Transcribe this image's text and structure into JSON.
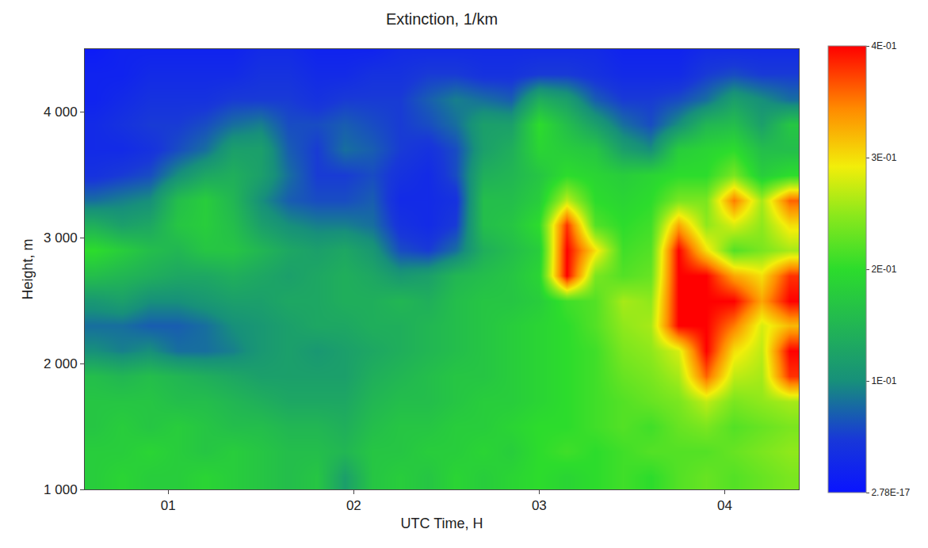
{
  "chart_data": {
    "type": "heatmap",
    "title": "Extinction, 1/km",
    "x_label": "UTC Time, H",
    "y_label": "Height, m",
    "x": [
      0.6,
      0.75,
      0.9,
      1.05,
      1.2,
      1.35,
      1.5,
      1.65,
      1.8,
      1.95,
      2.1,
      2.25,
      2.4,
      2.55,
      2.7,
      2.85,
      3.0,
      3.15,
      3.3,
      3.45,
      3.6,
      3.75,
      3.9,
      4.05,
      4.2,
      4.35
    ],
    "y": [
      1100,
      1300,
      1500,
      1700,
      1900,
      2100,
      2300,
      2500,
      2700,
      2900,
      3100,
      3300,
      3500,
      3700,
      3900,
      4100,
      4300,
      4500
    ],
    "z": [
      [
        0.18,
        0.19,
        0.18,
        0.18,
        0.19,
        0.18,
        0.17,
        0.16,
        0.17,
        0.12,
        0.17,
        0.18,
        0.17,
        0.19,
        0.18,
        0.19,
        0.2,
        0.19,
        0.2,
        0.21,
        0.2,
        0.22,
        0.23,
        0.22,
        0.23,
        0.24
      ],
      [
        0.18,
        0.18,
        0.19,
        0.18,
        0.17,
        0.18,
        0.17,
        0.16,
        0.16,
        0.15,
        0.17,
        0.17,
        0.18,
        0.18,
        0.19,
        0.18,
        0.2,
        0.21,
        0.2,
        0.21,
        0.22,
        0.22,
        0.22,
        0.23,
        0.24,
        0.25
      ],
      [
        0.17,
        0.18,
        0.17,
        0.18,
        0.17,
        0.16,
        0.16,
        0.15,
        0.15,
        0.14,
        0.16,
        0.17,
        0.17,
        0.18,
        0.18,
        0.19,
        0.2,
        0.2,
        0.21,
        0.22,
        0.21,
        0.23,
        0.24,
        0.22,
        0.23,
        0.24
      ],
      [
        0.17,
        0.17,
        0.17,
        0.16,
        0.16,
        0.15,
        0.14,
        0.13,
        0.13,
        0.13,
        0.15,
        0.16,
        0.16,
        0.17,
        0.18,
        0.18,
        0.19,
        0.2,
        0.21,
        0.22,
        0.23,
        0.24,
        0.27,
        0.24,
        0.25,
        0.26
      ],
      [
        0.16,
        0.15,
        0.16,
        0.15,
        0.14,
        0.13,
        0.12,
        0.12,
        0.12,
        0.12,
        0.14,
        0.15,
        0.16,
        0.17,
        0.17,
        0.18,
        0.19,
        0.2,
        0.21,
        0.23,
        0.24,
        0.26,
        0.36,
        0.27,
        0.26,
        0.38
      ],
      [
        0.1,
        0.09,
        0.1,
        0.08,
        0.08,
        0.09,
        0.11,
        0.12,
        0.11,
        0.12,
        0.13,
        0.14,
        0.15,
        0.16,
        0.17,
        0.18,
        0.19,
        0.2,
        0.21,
        0.24,
        0.25,
        0.28,
        0.4,
        0.3,
        0.27,
        0.4
      ],
      [
        0.08,
        0.08,
        0.07,
        0.07,
        0.08,
        0.1,
        0.11,
        0.12,
        0.13,
        0.13,
        0.14,
        0.14,
        0.15,
        0.16,
        0.17,
        0.18,
        0.19,
        0.2,
        0.22,
        0.25,
        0.26,
        0.4,
        0.4,
        0.35,
        0.28,
        0.32
      ],
      [
        0.11,
        0.12,
        0.1,
        0.1,
        0.11,
        0.12,
        0.12,
        0.13,
        0.13,
        0.14,
        0.14,
        0.15,
        0.14,
        0.16,
        0.17,
        0.17,
        0.18,
        0.21,
        0.22,
        0.26,
        0.25,
        0.4,
        0.4,
        0.4,
        0.33,
        0.4
      ],
      [
        0.16,
        0.15,
        0.14,
        0.13,
        0.13,
        0.14,
        0.13,
        0.12,
        0.13,
        0.14,
        0.13,
        0.11,
        0.12,
        0.15,
        0.16,
        0.17,
        0.19,
        0.4,
        0.24,
        0.22,
        0.23,
        0.4,
        0.4,
        0.33,
        0.3,
        0.38
      ],
      [
        0.2,
        0.18,
        0.16,
        0.15,
        0.17,
        0.17,
        0.15,
        0.13,
        0.12,
        0.13,
        0.11,
        0.06,
        0.05,
        0.08,
        0.14,
        0.16,
        0.18,
        0.4,
        0.3,
        0.21,
        0.22,
        0.4,
        0.3,
        0.22,
        0.24,
        0.26
      ],
      [
        0.14,
        0.12,
        0.13,
        0.17,
        0.18,
        0.16,
        0.12,
        0.1,
        0.09,
        0.09,
        0.08,
        0.04,
        0.03,
        0.05,
        0.16,
        0.17,
        0.2,
        0.38,
        0.22,
        0.2,
        0.21,
        0.33,
        0.25,
        0.28,
        0.25,
        0.3
      ],
      [
        0.08,
        0.09,
        0.1,
        0.16,
        0.18,
        0.15,
        0.1,
        0.07,
        0.06,
        0.06,
        0.07,
        0.03,
        0.03,
        0.04,
        0.16,
        0.16,
        0.18,
        0.27,
        0.2,
        0.19,
        0.2,
        0.24,
        0.24,
        0.35,
        0.26,
        0.36
      ],
      [
        0.04,
        0.05,
        0.06,
        0.1,
        0.13,
        0.14,
        0.12,
        0.08,
        0.05,
        0.05,
        0.06,
        0.04,
        0.03,
        0.06,
        0.14,
        0.15,
        0.17,
        0.2,
        0.19,
        0.18,
        0.19,
        0.2,
        0.2,
        0.24,
        0.18,
        0.2
      ],
      [
        0.03,
        0.03,
        0.04,
        0.06,
        0.08,
        0.12,
        0.12,
        0.07,
        0.05,
        0.08,
        0.07,
        0.05,
        0.04,
        0.06,
        0.12,
        0.14,
        0.19,
        0.18,
        0.17,
        0.12,
        0.1,
        0.18,
        0.19,
        0.2,
        0.16,
        0.16
      ],
      [
        0.03,
        0.04,
        0.05,
        0.05,
        0.06,
        0.08,
        0.09,
        0.06,
        0.06,
        0.07,
        0.06,
        0.05,
        0.06,
        0.08,
        0.12,
        0.12,
        0.2,
        0.16,
        0.12,
        0.08,
        0.06,
        0.1,
        0.15,
        0.16,
        0.12,
        0.17
      ],
      [
        0.02,
        0.03,
        0.04,
        0.04,
        0.04,
        0.05,
        0.05,
        0.05,
        0.04,
        0.05,
        0.05,
        0.05,
        0.07,
        0.09,
        0.08,
        0.07,
        0.14,
        0.12,
        0.07,
        0.05,
        0.05,
        0.06,
        0.08,
        0.12,
        0.1,
        0.08
      ],
      [
        0.02,
        0.02,
        0.03,
        0.03,
        0.03,
        0.03,
        0.04,
        0.04,
        0.03,
        0.03,
        0.04,
        0.04,
        0.05,
        0.05,
        0.04,
        0.04,
        0.05,
        0.05,
        0.04,
        0.03,
        0.03,
        0.03,
        0.05,
        0.06,
        0.05,
        0.05
      ],
      [
        0.01,
        0.02,
        0.02,
        0.02,
        0.02,
        0.02,
        0.03,
        0.03,
        0.02,
        0.02,
        0.02,
        0.03,
        0.03,
        0.03,
        0.03,
        0.03,
        0.03,
        0.03,
        0.03,
        0.02,
        0.02,
        0.02,
        0.03,
        0.03,
        0.03,
        0.03
      ]
    ],
    "xlim": [
      0.55,
      4.4
    ],
    "ylim": [
      1000,
      4500
    ],
    "xticks": [
      {
        "value": 1,
        "label": "01"
      },
      {
        "value": 2,
        "label": "02"
      },
      {
        "value": 3,
        "label": "03"
      },
      {
        "value": 4,
        "label": "04"
      }
    ],
    "yticks": [
      {
        "value": 1000,
        "label": "1 000"
      },
      {
        "value": 2000,
        "label": "2 000"
      },
      {
        "value": 3000,
        "label": "3 000"
      },
      {
        "value": 4000,
        "label": "4 000"
      }
    ],
    "colorbar": {
      "range": [
        2.78e-17,
        0.4
      ],
      "ticks": [
        {
          "value": 2.78e-17,
          "label": "2.78E-17"
        },
        {
          "value": 0.1,
          "label": "1E-01"
        },
        {
          "value": 0.2,
          "label": "2E-01"
        },
        {
          "value": 0.3,
          "label": "3E-01"
        },
        {
          "value": 0.4,
          "label": "4E-01"
        }
      ]
    },
    "grid": false
  }
}
